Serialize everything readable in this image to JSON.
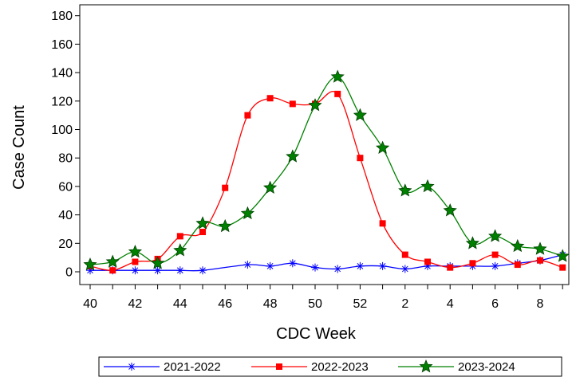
{
  "chart_data": {
    "type": "line",
    "title": "",
    "xlabel": "CDC Week",
    "ylabel": "Case Count",
    "ylim": [
      0,
      185
    ],
    "y_ticks": [
      0,
      20,
      40,
      60,
      80,
      100,
      120,
      140,
      160,
      180
    ],
    "x_categories": [
      40,
      41,
      42,
      43,
      44,
      45,
      46,
      47,
      48,
      49,
      50,
      51,
      52,
      1,
      2,
      3,
      4,
      5,
      6,
      7,
      8,
      9
    ],
    "x_tick_labels": [
      "40",
      "42",
      "44",
      "46",
      "48",
      "50",
      "52",
      "2",
      "4",
      "6",
      "8"
    ],
    "grid": false,
    "legend_position": "bottom",
    "series": [
      {
        "name": "2021-2022",
        "color": "#0000ff",
        "marker": "asterisk",
        "values": [
          1,
          1,
          1,
          1,
          1,
          1,
          null,
          5,
          4,
          6,
          3,
          2,
          4,
          4,
          2,
          4,
          4,
          4,
          4,
          6,
          8,
          12
        ]
      },
      {
        "name": "2022-2023",
        "color": "#ff0000",
        "marker": "square",
        "values": [
          4,
          1,
          7,
          9,
          25,
          28,
          59,
          110,
          122,
          118,
          118,
          125,
          80,
          34,
          12,
          7,
          3,
          6,
          12,
          5,
          8,
          3
        ]
      },
      {
        "name": "2023-2024",
        "color": "#008000",
        "marker": "star",
        "values": [
          5,
          7,
          14,
          6,
          15,
          34,
          32,
          41,
          59,
          81,
          117,
          137,
          110,
          87,
          57,
          60,
          43,
          20,
          25,
          18,
          16,
          11
        ]
      }
    ]
  }
}
